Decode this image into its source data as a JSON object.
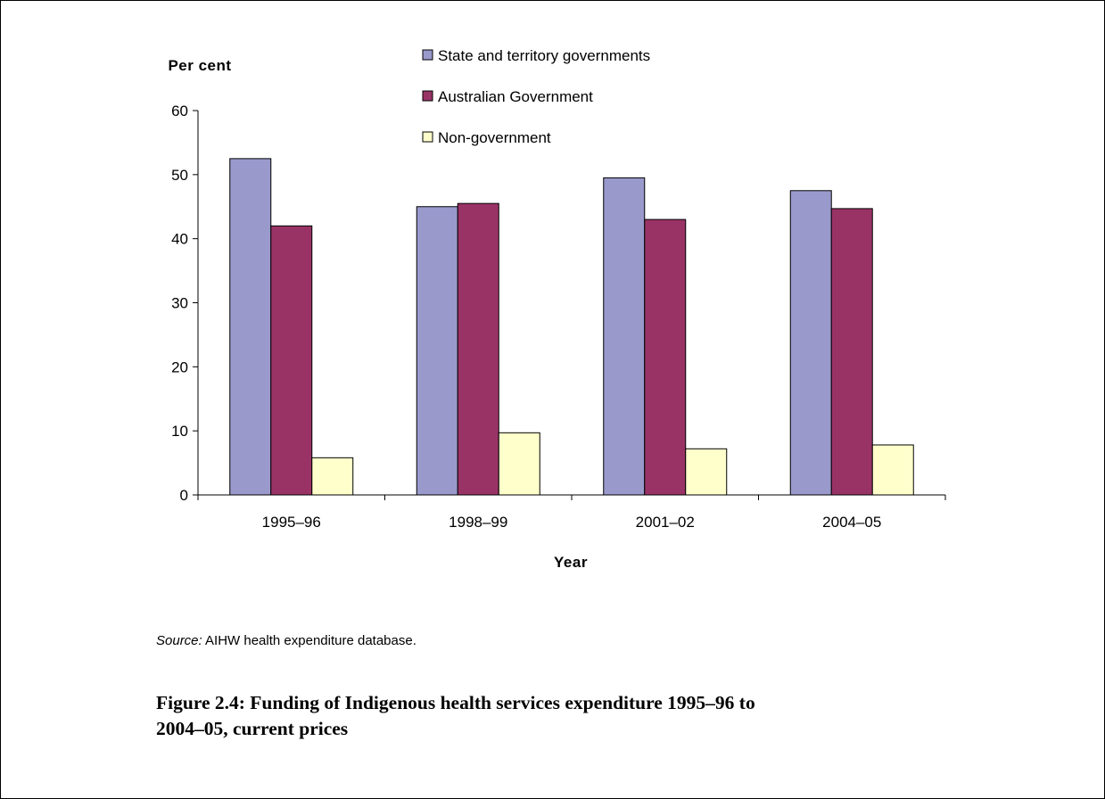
{
  "chart_data": {
    "type": "bar",
    "title": "",
    "ylabel": "Per cent",
    "xlabel": "Year",
    "ylim": [
      0,
      60
    ],
    "yticks": [
      "0",
      "10",
      "20",
      "30",
      "40",
      "50",
      "60"
    ],
    "categories": [
      "1995–96",
      "1998–99",
      "2001–02",
      "2004–05"
    ],
    "series": [
      {
        "name": "State and territory governments",
        "color": "#9999cc",
        "values": [
          52.5,
          45,
          49.5,
          47.5
        ]
      },
      {
        "name": "Australian Government",
        "color": "#993366",
        "values": [
          42,
          45.5,
          43,
          44.7
        ]
      },
      {
        "name": "Non-government",
        "color": "#ffffcc",
        "values": [
          5.8,
          9.7,
          7.2,
          7.8
        ]
      }
    ],
    "legend_position": "top-right",
    "grid": false
  },
  "source": {
    "label": "Source:",
    "text": "AIHW health expenditure database."
  },
  "caption": {
    "number": "Figure 2.4:",
    "text": "Funding of Indigenous health services expenditure 1995–96 to 2004–05, current prices"
  }
}
